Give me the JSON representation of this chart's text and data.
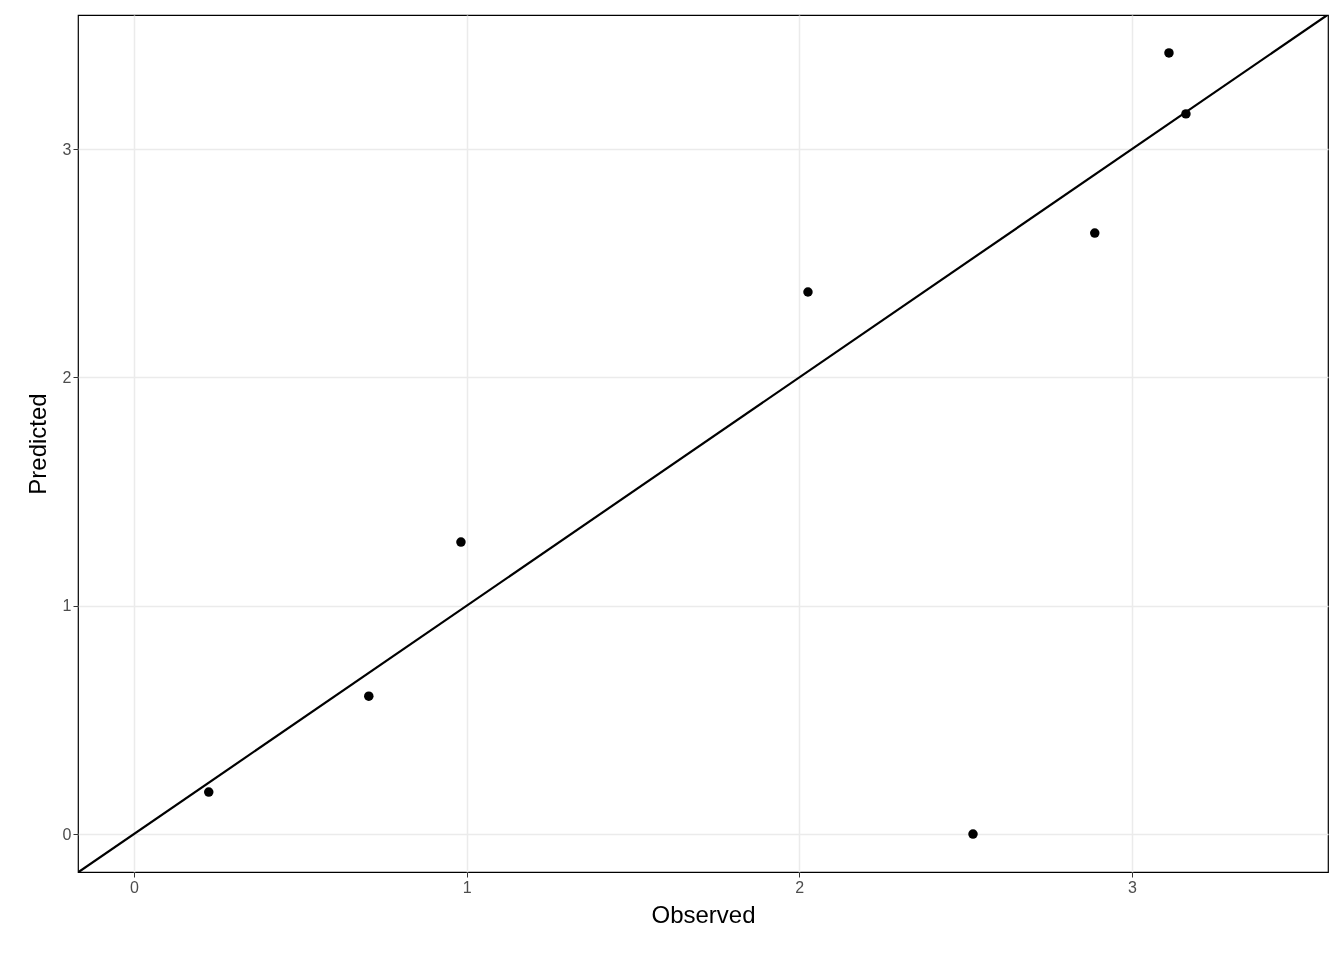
{
  "chart_data": {
    "type": "scatter",
    "xlabel": "Observed",
    "ylabel": "Predicted",
    "xlim": [
      -0.168,
      3.589
    ],
    "ylim": [
      -0.166,
      3.587
    ],
    "xticks": [
      0,
      1,
      2,
      3
    ],
    "yticks": [
      0,
      1,
      2,
      3
    ],
    "grid": true,
    "series": [
      {
        "type": "scatter",
        "marker": "circle",
        "color": "#000000",
        "x": [
          0.225,
          0.706,
          0.983,
          2.026,
          2.522,
          2.888,
          3.111,
          3.162
        ],
        "values": [
          0.184,
          0.604,
          1.279,
          2.374,
          0,
          2.632,
          3.421,
          3.154
        ]
      },
      {
        "type": "line",
        "marker": "none",
        "color": "#000000",
        "line_style": "solid",
        "x": [
          -0.166,
          3.587
        ],
        "values": [
          -0.166,
          3.587
        ]
      }
    ]
  }
}
